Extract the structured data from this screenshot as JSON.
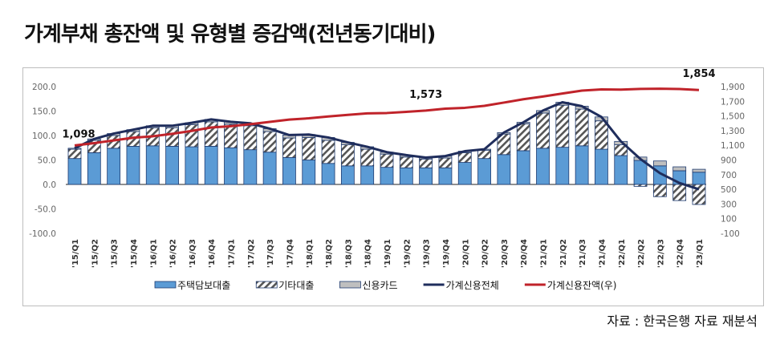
{
  "title": "가계부채 총잔액 및 유형별 증감액(전년동기대비)",
  "source": "자료 : 한국은행 자료 재분석",
  "chart_data": {
    "type": "bar",
    "stacked": true,
    "title": "가계부채 총잔액 및 유형별 증감액(전년동기대비)",
    "categories": [
      "'15/Q1",
      "'15/Q2",
      "'15/Q3",
      "'15/Q4",
      "'16/Q1",
      "'16/Q2",
      "'16/Q3",
      "'16/Q4",
      "'17/Q1",
      "'17/Q2",
      "'17/Q3",
      "'17/Q4",
      "'18/Q1",
      "'18/Q2",
      "'18/Q3",
      "'18/Q4",
      "'19/Q1",
      "'19/Q2",
      "'19/Q3",
      "'19/Q4",
      "'20/Q1",
      "'20/Q2",
      "'20/Q3",
      "'20/Q4",
      "'21/Q1",
      "'21/Q2",
      "'21/Q3",
      "'21/Q4",
      "'22/Q1",
      "'22/Q2",
      "'22/Q3",
      "'22/Q4",
      "'23/Q1"
    ],
    "ylim": [
      -100,
      200
    ],
    "yticks": [
      "200.0",
      "150.0",
      "100.0",
      "50.0",
      "0.0",
      "-50.0",
      "-100.0"
    ],
    "y2lim": [
      -100,
      1900
    ],
    "y2ticks": [
      "1,900",
      "1,700",
      "1,500",
      "1,300",
      "1,100",
      "900",
      "700",
      "500",
      "300",
      "100",
      "-100"
    ],
    "legend_position": "bottom",
    "series": [
      {
        "name": "주택담보대출",
        "kind": "bar",
        "axis": "left",
        "color": "#5b9bd5",
        "values": [
          53,
          65,
          74,
          78,
          79,
          78,
          77,
          78,
          75,
          71,
          66,
          55,
          50,
          43,
          38,
          38,
          35,
          34,
          34,
          34,
          45,
          53,
          61,
          69,
          74,
          76,
          79,
          72,
          59,
          49,
          38,
          28,
          25
        ]
      },
      {
        "name": "기타대출",
        "kind": "bar",
        "axis": "left",
        "color": "#ffffff",
        "pattern": "hatch",
        "values": [
          19,
          25,
          26,
          30,
          37,
          38,
          45,
          50,
          48,
          49,
          42,
          40,
          46,
          47,
          43,
          34,
          27,
          22,
          18,
          20,
          20,
          17,
          42,
          55,
          72,
          86,
          75,
          58,
          22,
          -4,
          -25,
          -33,
          -41
        ]
      },
      {
        "name": "신용카드",
        "kind": "bar",
        "axis": "left",
        "color": "#bfbfbf",
        "values": [
          2,
          3,
          4,
          4,
          4,
          4,
          4,
          5,
          5,
          5,
          6,
          6,
          6,
          6,
          5,
          5,
          4,
          4,
          3,
          4,
          3,
          2,
          3,
          3,
          5,
          6,
          6,
          8,
          7,
          7,
          10,
          8,
          6
        ]
      },
      {
        "name": "가계신용전체",
        "kind": "line",
        "axis": "left",
        "color": "#1f2d5c",
        "values": [
          74,
          93,
          104,
          112,
          120,
          120,
          126,
          133,
          128,
          125,
          114,
          101,
          102,
          96,
          86,
          77,
          66,
          60,
          55,
          58,
          68,
          72,
          106,
          127,
          151,
          168,
          160,
          138,
          88,
          52,
          23,
          3,
          -10
        ]
      },
      {
        "name": "가계신용잔액(우)",
        "kind": "line",
        "axis": "right",
        "color": "#c0232a",
        "values": [
          1098,
          1130,
          1166,
          1203,
          1223,
          1257,
          1296,
          1343,
          1360,
          1388,
          1419,
          1451,
          1468,
          1493,
          1515,
          1535,
          1540,
          1556,
          1573,
          1600,
          1611,
          1638,
          1682,
          1728,
          1765,
          1806,
          1845,
          1862,
          1859,
          1869,
          1871,
          1867,
          1854
        ]
      }
    ],
    "annotations": [
      {
        "text": "1,098",
        "category": "'15/Q1"
      },
      {
        "text": "1,573",
        "category": "'19/Q3"
      },
      {
        "text": "1,854",
        "category": "'23/Q1"
      }
    ]
  }
}
